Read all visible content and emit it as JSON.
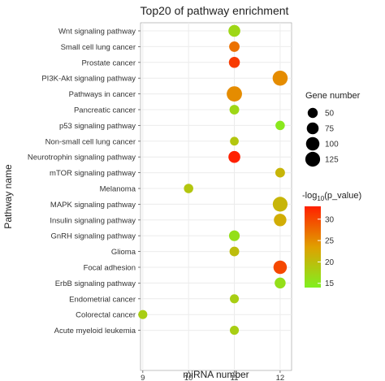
{
  "chart_data": {
    "type": "scatter",
    "title": "Top20 of pathway enrichment",
    "xlabel": "miRNA number",
    "ylabel": "Pathway name",
    "xlim": [
      8.95,
      12.25
    ],
    "xticks": [
      "9",
      "10",
      "11",
      "12"
    ],
    "xtick_values": [
      9,
      10,
      11,
      12
    ],
    "grid": true,
    "legend_position": "right",
    "size_legend": {
      "title": "Gene number",
      "labels": [
        "50",
        "75",
        "100",
        "125"
      ],
      "values": [
        50,
        75,
        100,
        125
      ]
    },
    "color_legend": {
      "title_prefix": "-log",
      "title_subscript": "10",
      "title_suffix": "(p_value)",
      "labels": [
        "30",
        "25",
        "20",
        "15"
      ],
      "values": [
        30,
        25,
        20,
        15
      ],
      "range": [
        14,
        33
      ],
      "low_color": "#80f020",
      "mid_color": "#e0a000",
      "high_color": "#ff2000"
    },
    "categories": [
      "Wnt signaling pathway",
      "Small cell lung cancer",
      "Prostate cancer",
      "PI3K-Akt signaling pathway",
      "Pathways in cancer",
      "Pancreatic cancer",
      "p53 signaling pathway",
      "Non-small cell lung cancer",
      "Neurotrophin signaling pathway",
      "mTOR signaling pathway",
      "Melanoma",
      "MAPK signaling pathway",
      "Insulin signaling pathway",
      "GnRH signaling pathway",
      "Glioma",
      "Focal adhesion",
      "ErbB signaling pathway",
      "Endometrial cancer",
      "Colorectal cancer",
      "Acute myeloid leukemia"
    ],
    "points": [
      {
        "pathway": "Wnt signaling pathway",
        "mirna": 11,
        "genes": 75,
        "neglog10p": 17
      },
      {
        "pathway": "Small cell lung cancer",
        "mirna": 11,
        "genes": 55,
        "neglog10p": 27
      },
      {
        "pathway": "Prostate cancer",
        "mirna": 11,
        "genes": 62,
        "neglog10p": 31
      },
      {
        "pathway": "PI3K-Akt signaling pathway",
        "mirna": 12,
        "genes": 130,
        "neglog10p": 25
      },
      {
        "pathway": "Pathways in cancer",
        "mirna": 11,
        "genes": 135,
        "neglog10p": 25
      },
      {
        "pathway": "Pancreatic cancer",
        "mirna": 11,
        "genes": 45,
        "neglog10p": 17
      },
      {
        "pathway": "p53 signaling pathway",
        "mirna": 12,
        "genes": 42,
        "neglog10p": 15
      },
      {
        "pathway": "Non-small cell lung cancer",
        "mirna": 11,
        "genes": 35,
        "neglog10p": 19
      },
      {
        "pathway": "Neurotrophin signaling pathway",
        "mirna": 11,
        "genes": 75,
        "neglog10p": 33
      },
      {
        "pathway": "mTOR signaling pathway",
        "mirna": 12,
        "genes": 45,
        "neglog10p": 21
      },
      {
        "pathway": "Melanoma",
        "mirna": 10,
        "genes": 42,
        "neglog10p": 19
      },
      {
        "pathway": "MAPK signaling pathway",
        "mirna": 12,
        "genes": 125,
        "neglog10p": 21
      },
      {
        "pathway": "Insulin signaling pathway",
        "mirna": 12,
        "genes": 85,
        "neglog10p": 22
      },
      {
        "pathway": "GnRH signaling pathway",
        "mirna": 11,
        "genes": 58,
        "neglog10p": 16
      },
      {
        "pathway": "Glioma",
        "mirna": 11,
        "genes": 45,
        "neglog10p": 20
      },
      {
        "pathway": "Focal adhesion",
        "mirna": 12,
        "genes": 100,
        "neglog10p": 30
      },
      {
        "pathway": "ErbB signaling pathway",
        "mirna": 12,
        "genes": 62,
        "neglog10p": 16
      },
      {
        "pathway": "Endometrial cancer",
        "mirna": 11,
        "genes": 38,
        "neglog10p": 18
      },
      {
        "pathway": "Colorectal cancer",
        "mirna": 9,
        "genes": 38,
        "neglog10p": 18
      },
      {
        "pathway": "Acute myeloid leukemia",
        "mirna": 11,
        "genes": 38,
        "neglog10p": 18
      }
    ]
  }
}
